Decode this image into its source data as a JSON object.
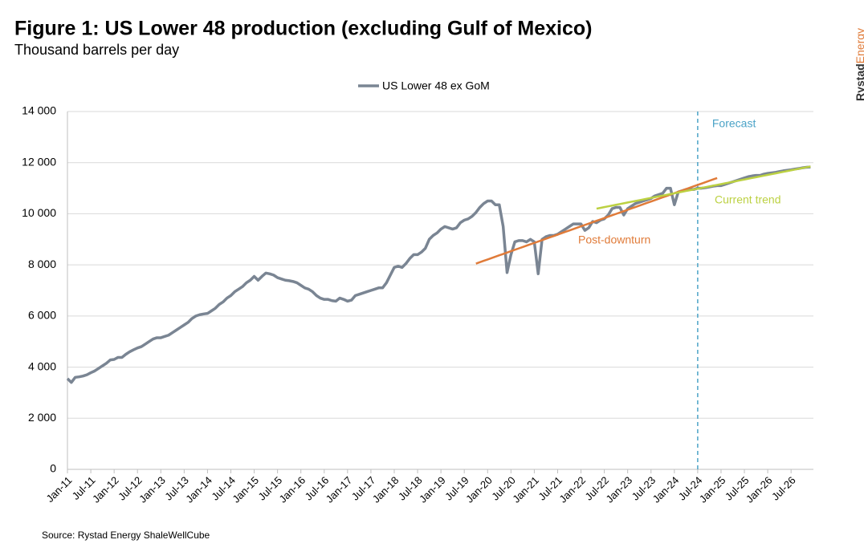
{
  "chart_data": {
    "type": "line",
    "title": "Figure 1: US Lower 48 production (excluding Gulf of Mexico)",
    "subtitle": "Thousand barrels per day",
    "brand": [
      "Rystad",
      "Energy"
    ],
    "source": "Source: Rystad Energy ShaleWellCube",
    "categories": [
      "Jan-11",
      null,
      null,
      null,
      null,
      null,
      "Jul-11",
      null,
      null,
      null,
      null,
      null,
      "Jan-12",
      null,
      null,
      null,
      null,
      null,
      "Jul-12",
      null,
      null,
      null,
      null,
      null,
      "Jan-13",
      null,
      null,
      null,
      null,
      null,
      "Jul-13",
      null,
      null,
      null,
      null,
      null,
      "Jan-14",
      null,
      null,
      null,
      null,
      null,
      "Jul-14",
      null,
      null,
      null,
      null,
      null,
      "Jan-15",
      null,
      null,
      null,
      null,
      null,
      "Jul-15",
      null,
      null,
      null,
      null,
      null,
      "Jan-16",
      null,
      null,
      null,
      null,
      null,
      "Jul-16",
      null,
      null,
      null,
      null,
      null,
      "Jan-17",
      null,
      null,
      null,
      null,
      null,
      "Jul-17",
      null,
      null,
      null,
      null,
      null,
      "Jan-18",
      null,
      null,
      null,
      null,
      null,
      "Jul-18",
      null,
      null,
      null,
      null,
      null,
      "Jan-19",
      null,
      null,
      null,
      null,
      null,
      "Jul-19",
      null,
      null,
      null,
      null,
      null,
      "Jan-20",
      null,
      null,
      null,
      null,
      null,
      "Jul-20",
      null,
      null,
      null,
      null,
      null,
      "Jan-21",
      null,
      null,
      null,
      null,
      null,
      "Jul-21",
      null,
      null,
      null,
      null,
      null,
      "Jan-22",
      null,
      null,
      null,
      null,
      null,
      "Jul-22",
      null,
      null,
      null,
      null,
      null,
      "Jan-23",
      null,
      null,
      null,
      null,
      null,
      "Jul-23",
      null,
      null,
      null,
      null,
      null,
      "Jan-24",
      null,
      null,
      null,
      null,
      null,
      "Jul-24",
      null,
      null,
      null,
      null,
      null,
      "Jan-25",
      null,
      null,
      null,
      null,
      null,
      "Jul-25",
      null,
      null,
      null,
      null,
      null,
      "Jan-26",
      null,
      null,
      null,
      null,
      null,
      "Jul-26",
      null,
      null,
      null,
      null,
      null
    ],
    "series": [
      {
        "name": "US Lower 48 ex GoM",
        "color": "#7a8593",
        "values": [
          3550,
          3400,
          3600,
          3620,
          3650,
          3700,
          3780,
          3850,
          3950,
          4050,
          4150,
          4280,
          4300,
          4380,
          4380,
          4500,
          4600,
          4680,
          4750,
          4800,
          4900,
          5000,
          5100,
          5150,
          5150,
          5200,
          5250,
          5350,
          5450,
          5550,
          5650,
          5750,
          5900,
          6000,
          6050,
          6080,
          6100,
          6200,
          6300,
          6450,
          6550,
          6700,
          6800,
          6950,
          7050,
          7150,
          7300,
          7400,
          7550,
          7400,
          7550,
          7680,
          7650,
          7600,
          7500,
          7450,
          7400,
          7380,
          7350,
          7300,
          7200,
          7100,
          7050,
          6950,
          6800,
          6700,
          6650,
          6650,
          6600,
          6580,
          6700,
          6650,
          6580,
          6620,
          6800,
          6850,
          6900,
          6950,
          7000,
          7050,
          7100,
          7100,
          7300,
          7600,
          7900,
          7950,
          7900,
          8050,
          8250,
          8400,
          8400,
          8500,
          8650,
          9000,
          9150,
          9250,
          9400,
          9500,
          9450,
          9400,
          9450,
          9650,
          9750,
          9800,
          9900,
          10050,
          10250,
          10400,
          10500,
          10500,
          10350,
          10350,
          9500,
          7700,
          8400,
          8900,
          8950,
          8950,
          8900,
          9000,
          8900,
          7650,
          9000,
          9100,
          9150,
          9150,
          9200,
          9300,
          9400,
          9500,
          9600,
          9600,
          9600,
          9350,
          9450,
          9700,
          9650,
          9750,
          9800,
          9950,
          10200,
          10250,
          10250,
          9950,
          10200,
          10300,
          10400,
          10450,
          10500,
          10550,
          10600,
          10700,
          10750,
          10800,
          11000,
          11000,
          10350,
          10850,
          10900,
          10950,
          10950,
          10950,
          11000,
          11000,
          11020,
          11050,
          11080,
          11100,
          11100,
          11150,
          11200,
          11250,
          11300,
          11350,
          11400,
          11450,
          11480,
          11500,
          11500,
          11550,
          11580,
          11600,
          11620,
          11650,
          11680,
          11700,
          11720,
          11750,
          11770,
          11800,
          11820,
          11830
        ]
      }
    ],
    "trends": [
      {
        "text": "Post-downturn",
        "color": "#e07b39",
        "values": [
          null,
          null,
          null,
          null,
          null,
          null,
          null,
          null,
          null,
          null,
          null,
          null,
          null,
          null,
          null,
          null,
          null,
          null,
          null,
          null,
          null,
          null,
          null,
          null,
          null,
          null,
          null,
          null,
          null,
          null,
          null,
          null,
          null,
          null,
          null,
          null,
          null,
          null,
          null,
          null,
          null,
          null,
          null,
          null,
          null,
          null,
          null,
          null,
          null,
          null,
          null,
          null,
          null,
          null,
          null,
          null,
          null,
          null,
          null,
          null,
          null,
          null,
          null,
          null,
          null,
          null,
          null,
          null,
          null,
          null,
          null,
          null,
          null,
          null,
          null,
          null,
          null,
          null,
          null,
          null,
          null,
          null,
          null,
          null,
          null,
          null,
          null,
          null,
          null,
          null,
          null,
          null,
          null,
          null,
          null,
          null,
          null,
          null,
          null,
          null,
          null,
          null,
          null,
          null,
          null,
          8050,
          8104,
          8158,
          8212,
          8266,
          8320,
          8374,
          8428,
          8482,
          8536,
          8590,
          8644,
          8698,
          8752,
          8806,
          8860,
          8914,
          8968,
          9022,
          9076,
          9130,
          9184,
          9238,
          9292,
          9346,
          9400,
          9454,
          9508,
          9562,
          9616,
          9670,
          9724,
          9778,
          9832,
          9886,
          9940,
          9994,
          10048,
          10102,
          10156,
          10210,
          10264,
          10318,
          10372,
          10426,
          10480,
          10534,
          10588,
          10642,
          10696,
          10750,
          10804,
          10858,
          10912,
          10966,
          11020,
          11074,
          11128,
          11182,
          11236,
          11290,
          11344,
          11398,
          null,
          null,
          null,
          null,
          null,
          null,
          null,
          null,
          null,
          null,
          null,
          null,
          null,
          null,
          null,
          null,
          null,
          null,
          null,
          null,
          null,
          null,
          null,
          null
        ]
      },
      {
        "text": "Current trend",
        "color": "#bcd142",
        "values": [
          null,
          null,
          null,
          null,
          null,
          null,
          null,
          null,
          null,
          null,
          null,
          null,
          null,
          null,
          null,
          null,
          null,
          null,
          null,
          null,
          null,
          null,
          null,
          null,
          null,
          null,
          null,
          null,
          null,
          null,
          null,
          null,
          null,
          null,
          null,
          null,
          null,
          null,
          null,
          null,
          null,
          null,
          null,
          null,
          null,
          null,
          null,
          null,
          null,
          null,
          null,
          null,
          null,
          null,
          null,
          null,
          null,
          null,
          null,
          null,
          null,
          null,
          null,
          null,
          null,
          null,
          null,
          null,
          null,
          null,
          null,
          null,
          null,
          null,
          null,
          null,
          null,
          null,
          null,
          null,
          null,
          null,
          null,
          null,
          null,
          null,
          null,
          null,
          null,
          null,
          null,
          null,
          null,
          null,
          null,
          null,
          null,
          null,
          null,
          null,
          null,
          null,
          null,
          null,
          null,
          null,
          null,
          null,
          null,
          null,
          null,
          null,
          null,
          null,
          null,
          null,
          null,
          null,
          null,
          null,
          null,
          null,
          null,
          null,
          null,
          null,
          null,
          null,
          null,
          null,
          null,
          null,
          null,
          null,
          null,
          null,
          10200,
          10230,
          10260,
          10290,
          10320,
          10350,
          10380,
          10410,
          10440,
          10470,
          10500,
          10530,
          10560,
          10590,
          10620,
          10650,
          10680,
          10710,
          10740,
          10770,
          10800,
          10830,
          10860,
          10890,
          10920,
          10950,
          10980,
          11010,
          11040,
          11070,
          11100,
          11130,
          11160,
          11190,
          11220,
          11250,
          11280,
          11310,
          11340,
          11370,
          11400,
          11430,
          11460,
          11490,
          11520,
          11550,
          11580,
          11610,
          11640,
          11670,
          11700,
          11730,
          11760,
          11790,
          11820,
          11850
        ]
      }
    ],
    "forecast": {
      "text": "Forecast",
      "category": "Jul-24",
      "color": "#4ba3c7"
    },
    "ylim": [
      0,
      14000
    ],
    "yticks": [
      0,
      {
        "value": 2000,
        "label": "2 000"
      },
      {
        "value": 4000,
        "label": "4 000"
      },
      {
        "value": 6000,
        "label": "6 000"
      },
      {
        "value": 8000,
        "label": "8 000"
      },
      {
        "value": 10000,
        "label": "10 000"
      },
      {
        "value": 12000,
        "label": "12 000"
      },
      {
        "value": 14000,
        "label": "14 000"
      }
    ],
    "grid": true,
    "legend": "top"
  }
}
